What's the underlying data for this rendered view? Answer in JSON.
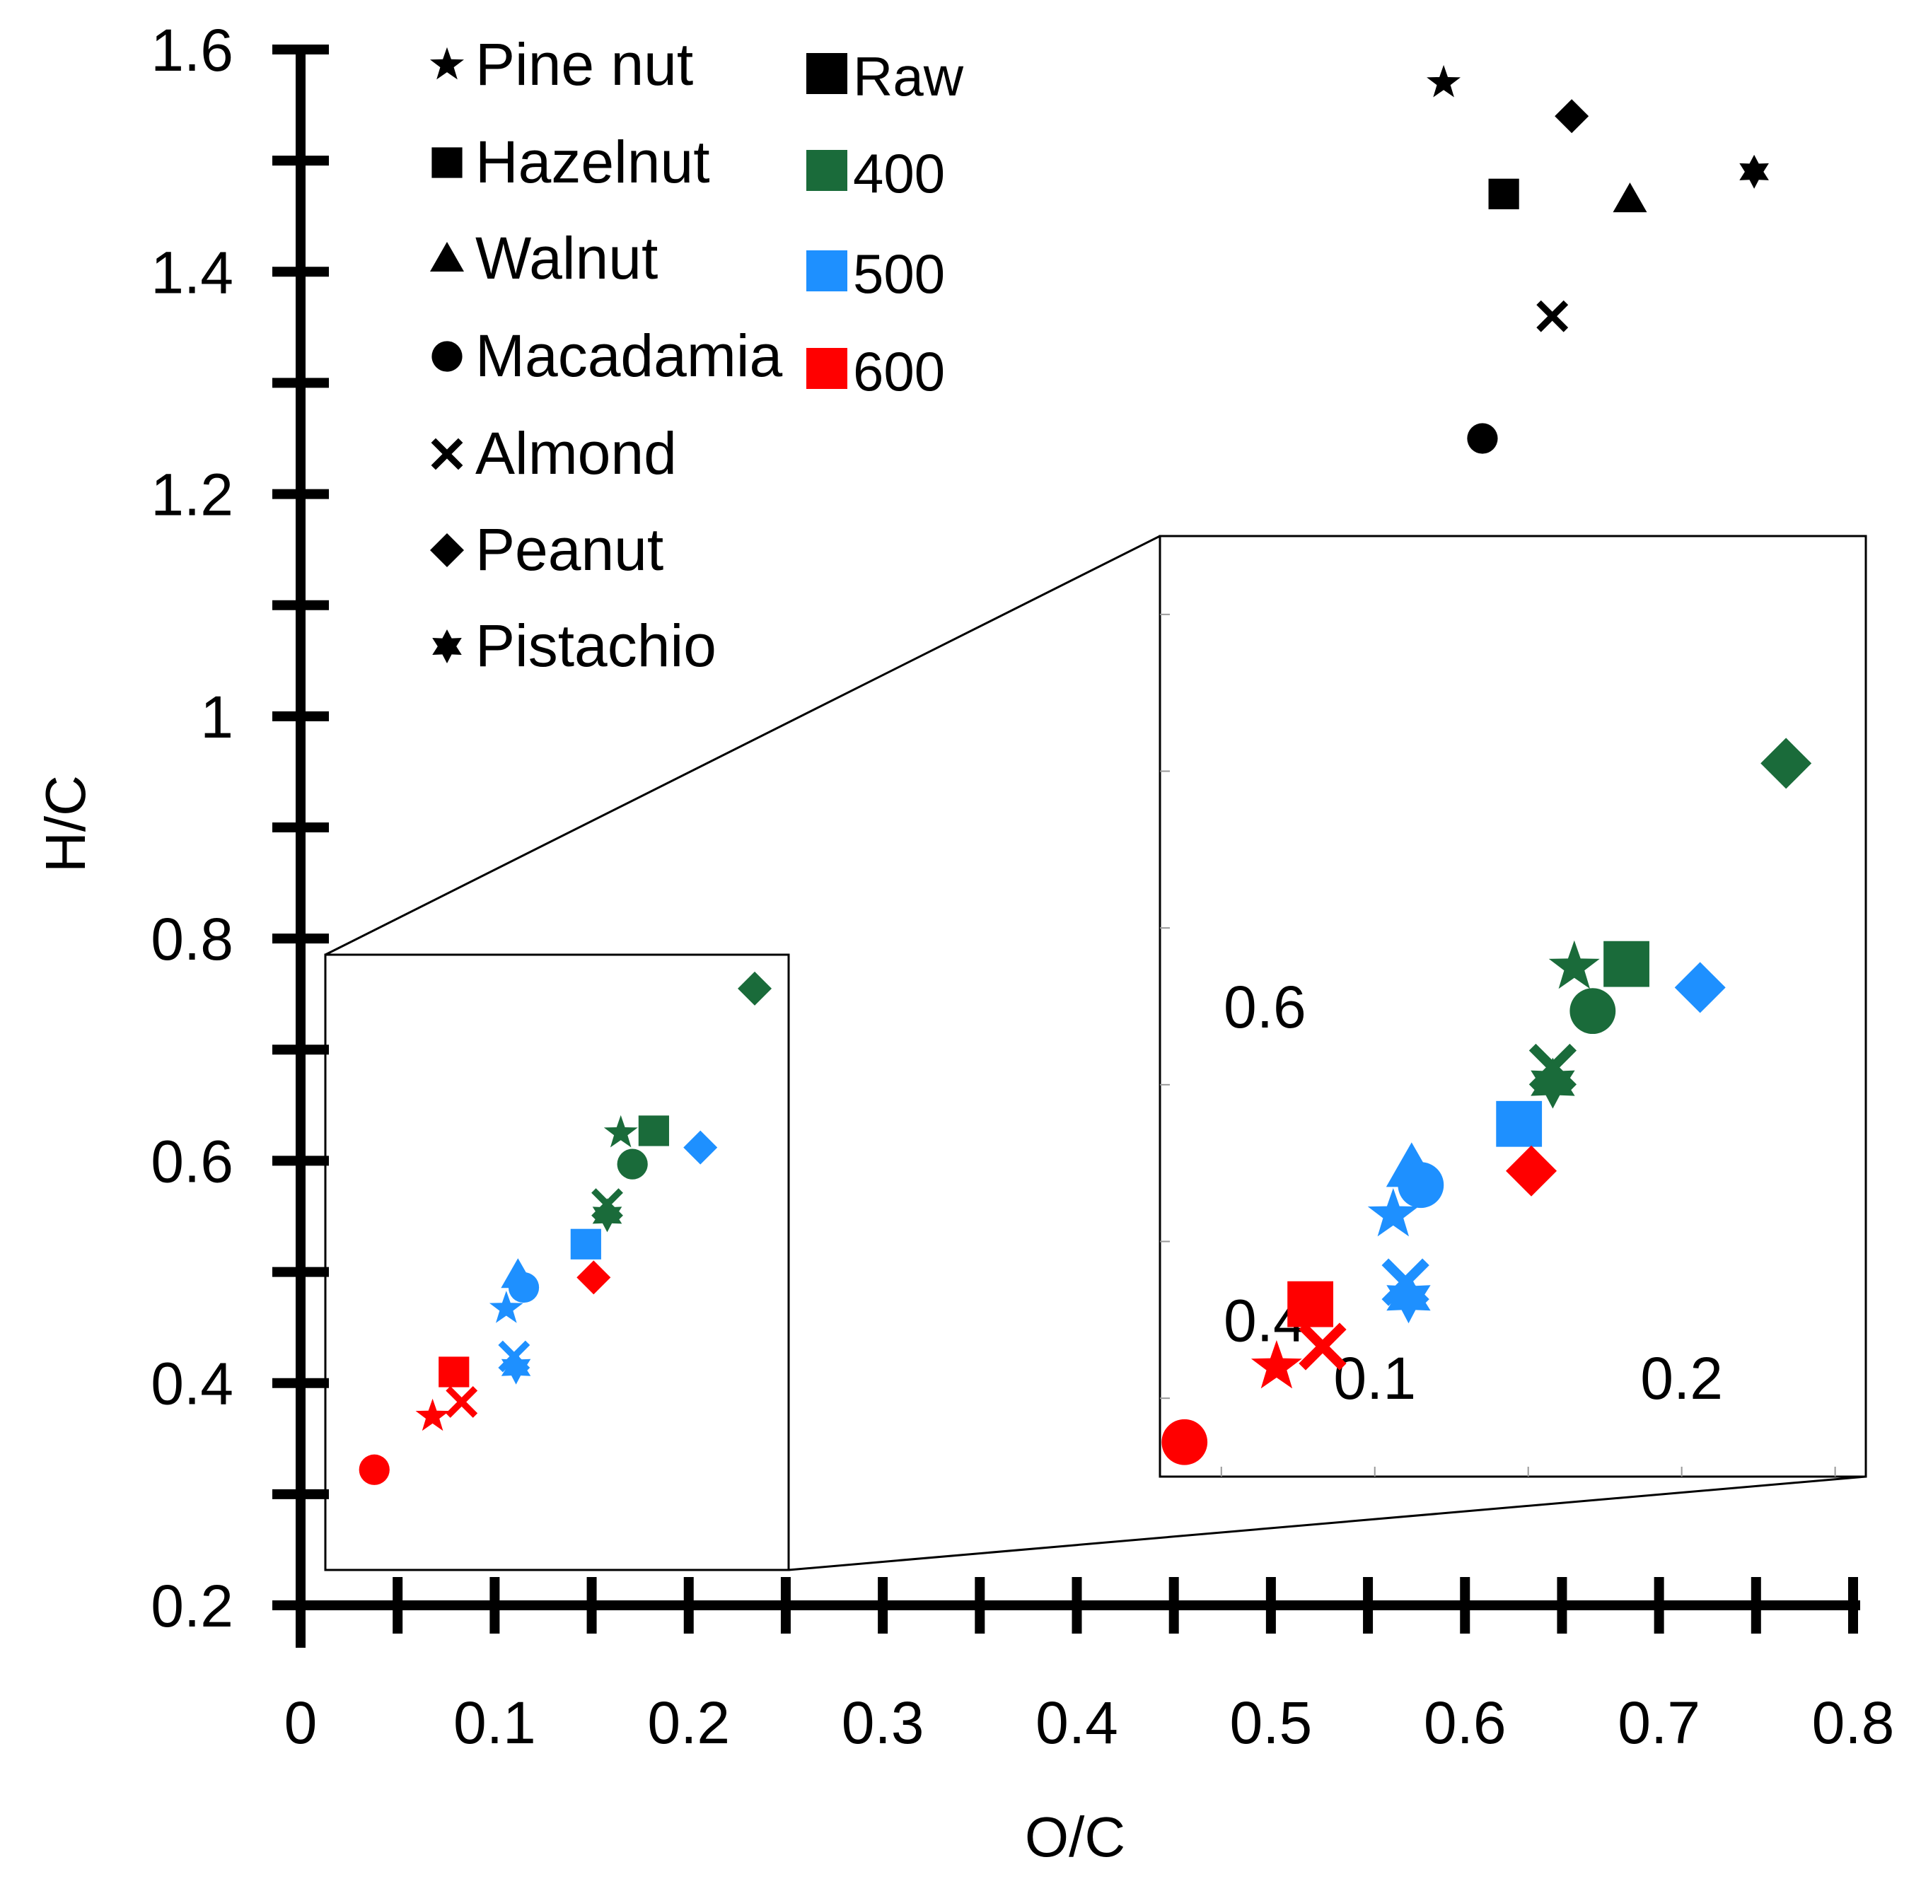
{
  "chart_data": {
    "type": "scatter",
    "title": "",
    "xlabel": "O/C",
    "ylabel": "H/C",
    "xlim": [
      0,
      0.8
    ],
    "ylim": [
      0.2,
      1.6
    ],
    "x_ticks": [
      "0",
      "0.1",
      "0.2",
      "0.3",
      "0.4",
      "0.5",
      "0.6",
      "0.7",
      "0.8"
    ],
    "y_ticks": [
      "0.2",
      "0.4",
      "0.6",
      "0.8",
      "1",
      "1.2",
      "1.4",
      "1.6"
    ],
    "grid": false,
    "legend_nuts": [
      {
        "label": "Pine nut",
        "marker": "star5"
      },
      {
        "label": "Hazelnut",
        "marker": "square"
      },
      {
        "label": "Walnut",
        "marker": "triangle"
      },
      {
        "label": "Macadamia",
        "marker": "circle"
      },
      {
        "label": "Almond",
        "marker": "x"
      },
      {
        "label": "Peanut",
        "marker": "diamond"
      },
      {
        "label": "Pistachio",
        "marker": "star6"
      }
    ],
    "legend_temps": [
      {
        "label": "Raw",
        "color": "#000000"
      },
      {
        "label": "400",
        "color": "#1a6b3a"
      },
      {
        "label": "500",
        "color": "#1e90ff"
      },
      {
        "label": "600",
        "color": "#ff0000"
      }
    ],
    "series": [
      {
        "name": "Raw",
        "color": "#000000",
        "points": [
          {
            "nut": "Pine nut",
            "x": 0.589,
            "y": 1.57
          },
          {
            "nut": "Hazelnut",
            "x": 0.62,
            "y": 1.47
          },
          {
            "nut": "Walnut",
            "x": 0.685,
            "y": 1.465
          },
          {
            "nut": "Macadamia",
            "x": 0.609,
            "y": 1.25
          },
          {
            "nut": "Almond",
            "x": 0.645,
            "y": 1.36
          },
          {
            "nut": "Peanut",
            "x": 0.655,
            "y": 1.54
          },
          {
            "nut": "Pistachio",
            "x": 0.749,
            "y": 1.49
          }
        ]
      },
      {
        "name": "400",
        "color": "#1a6b3a",
        "points": [
          {
            "nut": "Pine nut",
            "x": 0.165,
            "y": 0.625
          },
          {
            "nut": "Hazelnut",
            "x": 0.182,
            "y": 0.627
          },
          {
            "nut": "Macadamia",
            "x": 0.171,
            "y": 0.597
          },
          {
            "nut": "Almond",
            "x": 0.158,
            "y": 0.561
          },
          {
            "nut": "Peanut",
            "x": 0.234,
            "y": 0.755
          },
          {
            "nut": "Pistachio",
            "x": 0.158,
            "y": 0.551
          }
        ]
      },
      {
        "name": "500",
        "color": "#1e90ff",
        "points": [
          {
            "nut": "Pine nut",
            "x": 0.106,
            "y": 0.467
          },
          {
            "nut": "Hazelnut",
            "x": 0.147,
            "y": 0.525
          },
          {
            "nut": "Walnut",
            "x": 0.112,
            "y": 0.497
          },
          {
            "nut": "Macadamia",
            "x": 0.115,
            "y": 0.486
          },
          {
            "nut": "Almond",
            "x": 0.11,
            "y": 0.424
          },
          {
            "nut": "Peanut",
            "x": 0.206,
            "y": 0.612
          },
          {
            "nut": "Pistachio",
            "x": 0.111,
            "y": 0.414
          }
        ]
      },
      {
        "name": "600",
        "color": "#ff0000",
        "points": [
          {
            "nut": "Pine nut",
            "x": 0.068,
            "y": 0.37
          },
          {
            "nut": "Hazelnut",
            "x": 0.079,
            "y": 0.41
          },
          {
            "nut": "Macadamia",
            "x": 0.038,
            "y": 0.322
          },
          {
            "nut": "Almond",
            "x": 0.083,
            "y": 0.383
          },
          {
            "nut": "Peanut",
            "x": 0.151,
            "y": 0.495
          }
        ]
      }
    ],
    "inset": {
      "description": "Magnified view of the lower-left region",
      "x_ticks": [
        "0.1",
        "0.2"
      ],
      "y_ticks": [
        "0.4",
        "0.6"
      ],
      "xlim": [
        0.03,
        0.26
      ],
      "ylim": [
        0.3,
        0.9
      ]
    }
  }
}
